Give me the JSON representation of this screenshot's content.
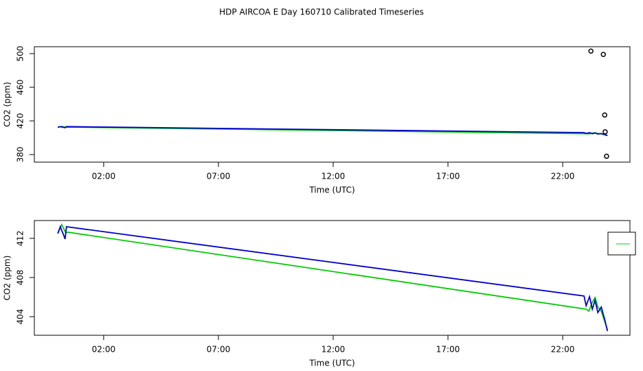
{
  "title": "HDP AIRCOA E  Day 160710  Calibrated Timeseries",
  "chart_data": [
    {
      "type": "line",
      "xlabel": "Time (UTC)",
      "ylabel": "CO2 (ppm)",
      "xlim": [
        -1.02,
        24.93
      ],
      "ylim": [
        371,
        508.2
      ],
      "xticks": [
        {
          "value": 2,
          "label": "02:00"
        },
        {
          "value": 7,
          "label": "07:00"
        },
        {
          "value": 12,
          "label": "12:00"
        },
        {
          "value": 17,
          "label": "17:00"
        },
        {
          "value": 22,
          "label": "22:00"
        }
      ],
      "yticks": [
        380,
        420,
        460,
        500
      ],
      "series": [
        {
          "color": "#00cc00",
          "style": "line",
          "x": [
            0,
            0.17,
            0.35,
            0.44,
            23.02,
            23.14,
            23.29,
            23.41,
            23.53,
            23.68,
            23.95
          ],
          "values": [
            412.49,
            413.4,
            412.56,
            412.63,
            404.77,
            404.56,
            405.47,
            405.96,
            404.98,
            404.56,
            402.67
          ]
        },
        {
          "color": "#0000cc",
          "style": "line",
          "x": [
            0,
            0.11,
            0.23,
            0.32,
            0.38,
            22.93,
            23.02,
            23.17,
            23.29,
            23.41,
            23.53,
            23.68,
            23.83,
            23.95
          ],
          "values": [
            412.49,
            413.19,
            412.49,
            411.93,
            413.19,
            406.11,
            405.12,
            406.04,
            404.77,
            405.68,
            404.42,
            404.98,
            403.72,
            402.53
          ]
        },
        {
          "color": "#000000",
          "style": "points",
          "x": [
            23.23,
            23.77,
            23.83,
            23.85,
            23.91
          ],
          "values": [
            503,
            499,
            427,
            407,
            378
          ]
        }
      ]
    },
    {
      "type": "line",
      "xlabel": "Time (UTC)",
      "ylabel": "CO2 (ppm)",
      "xlim": [
        -1.02,
        24.93
      ],
      "ylim": [
        402.1,
        413.82
      ],
      "xticks": [
        {
          "value": 2,
          "label": "02:00"
        },
        {
          "value": 7,
          "label": "07:00"
        },
        {
          "value": 12,
          "label": "12:00"
        },
        {
          "value": 17,
          "label": "17:00"
        },
        {
          "value": 22,
          "label": "22:00"
        }
      ],
      "yticks": [
        404,
        408,
        412
      ],
      "series": [
        {
          "color": "#00cc00",
          "style": "line",
          "x": [
            0,
            0.17,
            0.35,
            0.44,
            23.02,
            23.14,
            23.29,
            23.41,
            23.53,
            23.68,
            23.95
          ],
          "values": [
            412.49,
            413.4,
            412.56,
            412.63,
            404.77,
            404.56,
            405.47,
            405.96,
            404.98,
            404.56,
            402.67
          ]
        },
        {
          "color": "#0000cc",
          "style": "line",
          "x": [
            0,
            0.11,
            0.23,
            0.32,
            0.38,
            22.93,
            23.02,
            23.17,
            23.29,
            23.41,
            23.53,
            23.68,
            23.83,
            23.95
          ],
          "values": [
            412.49,
            413.19,
            412.49,
            411.93,
            413.19,
            406.11,
            405.12,
            406.04,
            404.77,
            405.68,
            404.42,
            404.98,
            403.72,
            402.53
          ]
        }
      ]
    }
  ]
}
